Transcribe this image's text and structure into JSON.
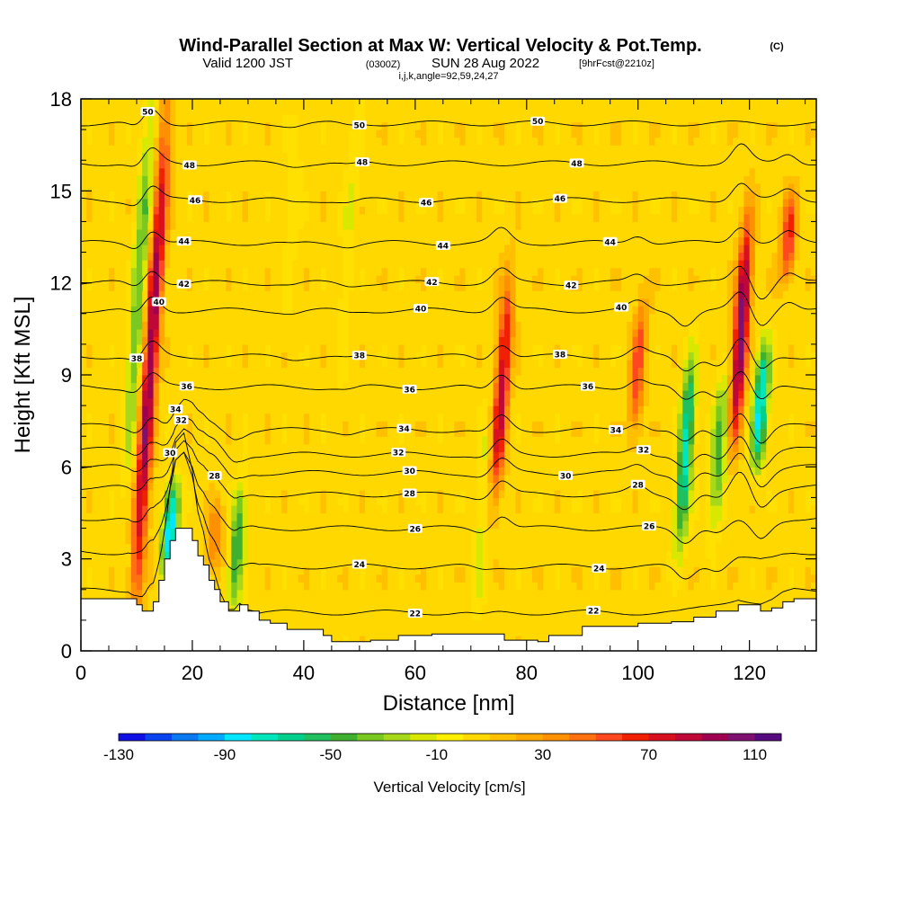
{
  "title": {
    "main": "Wind-Parallel Section at Max W: Vertical Velocity & Pot.Temp.",
    "copyright": "(C)",
    "valid_prefix": "Valid 1200 JST",
    "valid_zulu": "(0300Z)",
    "valid_date": "SUN 28 Aug 2022",
    "forecast": "[9hrFcst@2210z]",
    "indices": "i,j,k,angle=92,59,24,27"
  },
  "chart_data": {
    "type": "heatmap",
    "x_axis": {
      "label": "Distance [nm]",
      "range": [
        0,
        132
      ],
      "ticks": [
        0,
        20,
        40,
        60,
        80,
        100,
        120
      ],
      "tick_labels": [
        "0",
        "20",
        "40",
        "60",
        "80",
        "100",
        "120"
      ]
    },
    "y_axis": {
      "label": "Height [Kft MSL]",
      "range": [
        0,
        18
      ],
      "ticks": [
        0,
        3,
        6,
        9,
        12,
        15,
        18
      ],
      "tick_labels": [
        "0",
        "3",
        "6",
        "9",
        "12",
        "15",
        "18"
      ]
    },
    "colorbar": {
      "label": "Vertical Velocity [cm/s]",
      "range": [
        -130,
        120
      ],
      "tick_values": [
        -130,
        -90,
        -50,
        -10,
        30,
        70,
        110
      ],
      "tick_labels": [
        "-130",
        "-90",
        "-50",
        "-10",
        "30",
        "70",
        "110"
      ],
      "colors": [
        "#1010e6",
        "#0a44f0",
        "#0a78f0",
        "#00aaff",
        "#00e6ff",
        "#00e6bc",
        "#00d08c",
        "#20c060",
        "#40b030",
        "#7ac820",
        "#a8d81a",
        "#d8e800",
        "#fff000",
        "#ffd800",
        "#ffc000",
        "#ffa800",
        "#ff9000",
        "#ff7010",
        "#ff4820",
        "#f02000",
        "#d81020",
        "#c00838",
        "#a00050",
        "#801070",
        "#580a80"
      ]
    },
    "background_value": 5,
    "updrafts_and_downdrafts": [
      {
        "x": 12.5,
        "y_from": 1.5,
        "y_to": 17.5,
        "peak": 95
      },
      {
        "x": 10.5,
        "y_from": 6,
        "y_to": 18,
        "peak": -45
      },
      {
        "x": 16,
        "y_from": 2.5,
        "y_to": 5.5,
        "peak": -100
      },
      {
        "x": 28,
        "y_from": 1.3,
        "y_to": 5.5,
        "peak": -55
      },
      {
        "x": 24,
        "y_from": 2.5,
        "y_to": 5,
        "peak": 35
      },
      {
        "x": 75.5,
        "y_from": 5,
        "y_to": 12,
        "peak": 80
      },
      {
        "x": 72,
        "y_from": 1,
        "y_to": 8,
        "peak": -20
      },
      {
        "x": 100,
        "y_from": 7,
        "y_to": 11.5,
        "peak": 50
      },
      {
        "x": 108.5,
        "y_from": 3.5,
        "y_to": 9.5,
        "peak": -80
      },
      {
        "x": 118.5,
        "y_from": 7,
        "y_to": 14,
        "peak": 105
      },
      {
        "x": 114.5,
        "y_from": 4,
        "y_to": 9,
        "peak": -50
      },
      {
        "x": 122,
        "y_from": 6,
        "y_to": 10,
        "peak": -90
      },
      {
        "x": 127,
        "y_from": 12,
        "y_to": 15,
        "peak": 60
      },
      {
        "x": 48,
        "y_from": 9,
        "y_to": 18,
        "peak": -15
      },
      {
        "x": 38,
        "y_from": 11,
        "y_to": 18,
        "peak": -12
      }
    ],
    "theta_contours": [
      {
        "value": 22,
        "height": 1.25,
        "labels": [
          {
            "x": 60,
            "text": "22"
          },
          {
            "x": 92,
            "text": "22"
          }
        ]
      },
      {
        "value": 24,
        "height": 2.75,
        "labels": [
          {
            "x": 50,
            "text": "24"
          },
          {
            "x": 93,
            "text": "24"
          }
        ]
      },
      {
        "value": 26,
        "height": 4.0,
        "labels": [
          {
            "x": 60,
            "text": "26"
          },
          {
            "x": 102,
            "text": "26"
          }
        ]
      },
      {
        "value": 28,
        "height": 5.1,
        "labels": [
          {
            "x": 24,
            "text": "28"
          },
          {
            "x": 59,
            "text": "28"
          },
          {
            "x": 100,
            "text": "28"
          }
        ]
      },
      {
        "value": 30,
        "height": 5.8,
        "labels": [
          {
            "x": 16,
            "text": "30"
          },
          {
            "x": 59,
            "text": "30"
          },
          {
            "x": 87,
            "text": "30"
          }
        ]
      },
      {
        "value": 32,
        "height": 6.4,
        "labels": [
          {
            "x": 18,
            "text": "32"
          },
          {
            "x": 57,
            "text": "32"
          },
          {
            "x": 101,
            "text": "32"
          }
        ]
      },
      {
        "value": 34,
        "height": 7.2,
        "labels": [
          {
            "x": 17,
            "text": "34"
          },
          {
            "x": 58,
            "text": "34"
          },
          {
            "x": 96,
            "text": "34"
          }
        ]
      },
      {
        "value": 36,
        "height": 8.6,
        "labels": [
          {
            "x": 19,
            "text": "36"
          },
          {
            "x": 59,
            "text": "36"
          },
          {
            "x": 91,
            "text": "36"
          }
        ]
      },
      {
        "value": 38,
        "height": 9.6,
        "labels": [
          {
            "x": 10,
            "text": "38"
          },
          {
            "x": 50,
            "text": "38"
          },
          {
            "x": 86,
            "text": "38"
          }
        ]
      },
      {
        "value": 40,
        "height": 11.1,
        "labels": [
          {
            "x": 14,
            "text": "40"
          },
          {
            "x": 61,
            "text": "40"
          },
          {
            "x": 97,
            "text": "40"
          }
        ]
      },
      {
        "value": 42,
        "height": 12.0,
        "labels": [
          {
            "x": 18.5,
            "text": "42"
          },
          {
            "x": 63,
            "text": "42"
          },
          {
            "x": 88,
            "text": "42"
          }
        ]
      },
      {
        "value": 44,
        "height": 13.3,
        "labels": [
          {
            "x": 18.5,
            "text": "44"
          },
          {
            "x": 65,
            "text": "44"
          },
          {
            "x": 95,
            "text": "44"
          }
        ]
      },
      {
        "value": 46,
        "height": 14.7,
        "labels": [
          {
            "x": 20.5,
            "text": "46"
          },
          {
            "x": 62,
            "text": "46"
          },
          {
            "x": 86,
            "text": "46"
          }
        ]
      },
      {
        "value": 48,
        "height": 15.9,
        "labels": [
          {
            "x": 19.5,
            "text": "48"
          },
          {
            "x": 50.5,
            "text": "48"
          },
          {
            "x": 89,
            "text": "48"
          }
        ]
      },
      {
        "value": 50,
        "height": 17.2,
        "labels": [
          {
            "x": 12,
            "text": "50"
          },
          {
            "x": 50,
            "text": "50"
          },
          {
            "x": 82,
            "text": "50"
          }
        ]
      }
    ],
    "terrain": [
      [
        0,
        1.7
      ],
      [
        4,
        1.7
      ],
      [
        6.5,
        1.7
      ],
      [
        8.5,
        1.7
      ],
      [
        10,
        1.5
      ],
      [
        11,
        1.3
      ],
      [
        11.5,
        1.3
      ],
      [
        13,
        1.6
      ],
      [
        14,
        2.3
      ],
      [
        15,
        3.0
      ],
      [
        16,
        3.6
      ],
      [
        17,
        4.0
      ],
      [
        18.5,
        4.0
      ],
      [
        20,
        3.6
      ],
      [
        21,
        3.1
      ],
      [
        22,
        2.8
      ],
      [
        23,
        2.3
      ],
      [
        24,
        2.0
      ],
      [
        25,
        1.6
      ],
      [
        26.5,
        1.3
      ],
      [
        27.5,
        1.3
      ],
      [
        28.5,
        1.5
      ],
      [
        30,
        1.3
      ],
      [
        32,
        1.0
      ],
      [
        34,
        0.9
      ],
      [
        37,
        0.7
      ],
      [
        42,
        0.7
      ],
      [
        43.5,
        0.5
      ],
      [
        45,
        0.3
      ],
      [
        52,
        0.35
      ],
      [
        57,
        0.5
      ],
      [
        63,
        0.55
      ],
      [
        68,
        0.55
      ],
      [
        72,
        0.55
      ],
      [
        76,
        0.35
      ],
      [
        82,
        0.3
      ],
      [
        84,
        0.5
      ],
      [
        90,
        0.8
      ],
      [
        100,
        0.9
      ],
      [
        106,
        0.95
      ],
      [
        110,
        1.1
      ],
      [
        114,
        1.3
      ],
      [
        118,
        1.5
      ],
      [
        122,
        1.3
      ],
      [
        124,
        1.4
      ],
      [
        126,
        1.6
      ],
      [
        128,
        1.7
      ],
      [
        130,
        1.7
      ],
      [
        132,
        1.7
      ]
    ]
  }
}
